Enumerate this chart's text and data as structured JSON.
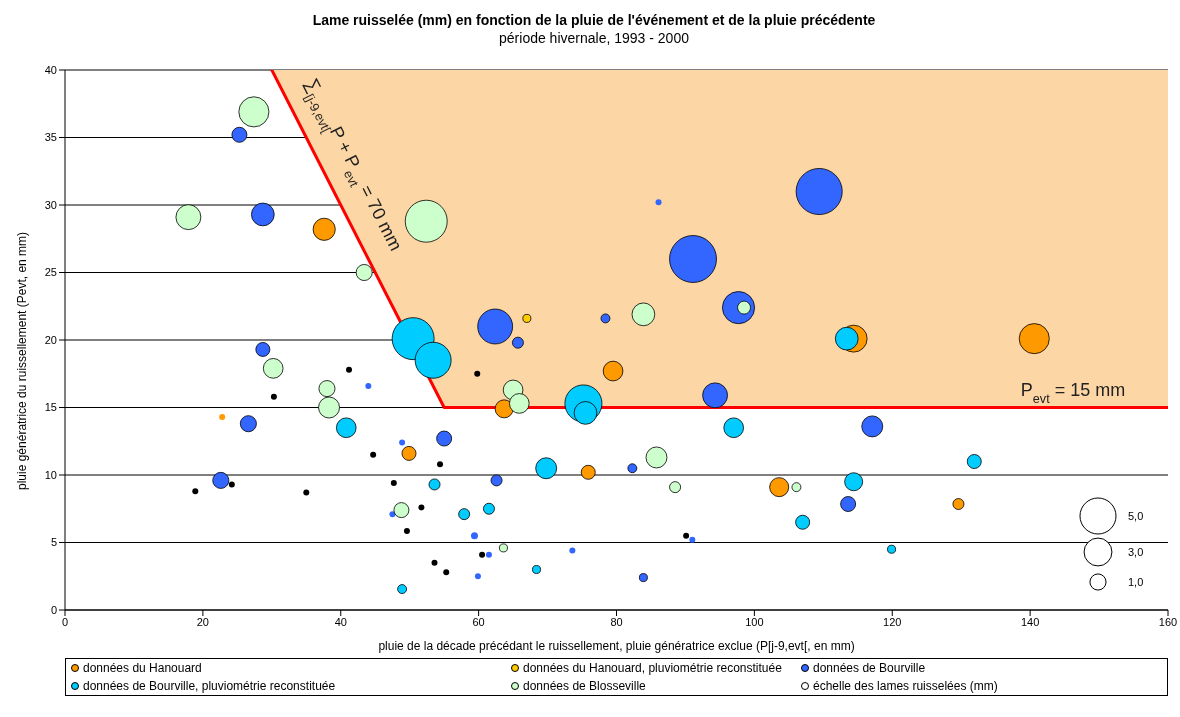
{
  "chart_data": {
    "type": "bubble",
    "title": "Lame ruisselée (mm) en fonction de la pluie de l'événement et de la pluie précédente",
    "subtitle": "période hivernale, 1993 - 2000",
    "xlabel": "pluie de la décade précédant le ruissellement, pluie génératrice exclue (P[j-9,evt[, en mm)",
    "ylabel": "pluie génératrice du ruissellement (Pevt, en mm)",
    "xlim": [
      0,
      160
    ],
    "xticks": [
      0,
      20,
      40,
      60,
      80,
      100,
      120,
      140,
      160
    ],
    "ylim": [
      0,
      40
    ],
    "yticks": [
      0,
      5,
      10,
      15,
      20,
      25,
      30,
      35,
      40
    ],
    "grid": "y",
    "legend": "bottom",
    "size_legend": [
      {
        "value": 5,
        "label": "5,0"
      },
      {
        "value": 3,
        "label": "3,0"
      },
      {
        "value": 1,
        "label": "1,0"
      }
    ],
    "annotations": [
      "∑$_{[j-9,evt[}$P + P$_{evt}$ = 70 mm",
      "P$_{evt}$ = 15 mm",
      "échelle des lames ruisselées (mm)"
    ],
    "series": [
      {
        "type": "line",
        "color": "#ff0000",
        "x": [
          30,
          55,
          160
        ],
        "values": [
          40,
          15,
          15
        ],
        "lower": [
          40,
          15,
          15
        ],
        "upper": [
          40,
          40,
          40
        ]
      },
      {
        "name": "données du Hanouard",
        "color": "#ff9900",
        "x": [
          37.6,
          114.4,
          140.6,
          49.9,
          22.8,
          79.5,
          63.7,
          75.9,
          103.6,
          129.6
        ],
        "values": [
          28.2,
          20.1,
          20.1,
          11.6,
          14.3,
          17.7,
          14.9,
          10.2,
          9.1,
          7.85
        ],
        "sizes": [
          1.9,
          2.8,
          3.5,
          0.76,
          0.14,
          1.5,
          1.25,
          0.76,
          1.4,
          0.47
        ]
      },
      {
        "name": "données du Hanouard, pluviométrie reconstituée",
        "color": "#ffcc00",
        "x": [
          67.0
        ],
        "values": [
          21.6
        ],
        "sizes": [
          0.25
        ]
      },
      {
        "name": "données de Bourville",
        "color": "#3366ff",
        "x": [
          25.3,
          28.7,
          28.7,
          86.1,
          109.4,
          91.1,
          97.7,
          78.4,
          62.4,
          65.7,
          117.1,
          26.6,
          55.0,
          22.6,
          59.4,
          94.3,
          82.3,
          62.6,
          113.6,
          83.9
        ],
        "values": [
          35.2,
          29.3,
          19.3,
          30.2,
          31.0,
          26.0,
          22.4,
          21.6,
          21.0,
          19.8,
          13.6,
          13.8,
          12.7,
          9.6,
          5.5,
          15.9,
          10.5,
          9.6,
          7.85,
          2.4
        ],
        "sizes": [
          0.87,
          2.0,
          0.76,
          0.14,
          8.2,
          8.5,
          4.0,
          0.31,
          4.7,
          0.47,
          1.7,
          1.0,
          0.87,
          1.0,
          0.19,
          2.4,
          0.31,
          0.47,
          0.87,
          0.25
        ]
      },
      {
        "type": "scatter",
        "color": "#3366ff",
        "x": [
          44.0,
          48.9,
          47.5,
          73.6,
          91.0,
          61.5,
          59.9
        ],
        "values": [
          16.6,
          12.4,
          7.1,
          4.4,
          5.2,
          4.1,
          2.5
        ]
      },
      {
        "name": "données de Bourville, pluviométrie reconstituée",
        "color": "#00ccff",
        "x": [
          50.5,
          53.4,
          113.4,
          131.9,
          119.9,
          40.8,
          53.6,
          57.9,
          48.9,
          75.2,
          75.5,
          97.0,
          69.8,
          114.4,
          107.0,
          61.5,
          68.4
        ],
        "values": [
          20.1,
          18.5,
          20.1,
          11.0,
          4.5,
          13.5,
          9.3,
          7.1,
          1.55,
          15.3,
          14.6,
          13.5,
          10.5,
          9.5,
          6.5,
          7.5,
          3.0
        ],
        "sizes": [
          6.8,
          5.0,
          2.0,
          0.76,
          0.25,
          1.5,
          0.47,
          0.47,
          0.31,
          5.3,
          2.0,
          1.5,
          1.7,
          1.25,
          0.76,
          0.47,
          0.25
        ]
      },
      {
        "name": "données de Blosseville",
        "color": "#ccffcc",
        "x": [
          27.4,
          17.9,
          43.4,
          52.4,
          83.9,
          98.5,
          30.2,
          38.0,
          38.3,
          48.8,
          65.0,
          65.9,
          85.8,
          88.5,
          106.1,
          63.6
        ],
        "values": [
          36.9,
          29.1,
          25.0,
          28.8,
          21.9,
          22.4,
          17.9,
          16.4,
          15.0,
          7.4,
          16.3,
          15.3,
          11.3,
          9.1,
          9.1,
          4.6
        ],
        "sizes": [
          3.5,
          2.4,
          1.0,
          6.8,
          2.0,
          0.65,
          1.5,
          1.0,
          1.7,
          0.87,
          1.5,
          1.5,
          1.7,
          0.47,
          0.31,
          0.25
        ]
      },
      {
        "type": "scatter",
        "color": "#000000",
        "x": [
          30.3,
          41.2,
          44.7,
          54.4,
          24.2,
          18.9,
          35.0,
          47.7,
          51.7,
          49.6,
          53.6,
          55.3,
          59.8,
          90.1,
          60.5
        ],
        "values": [
          15.8,
          17.8,
          11.5,
          10.8,
          9.3,
          8.8,
          8.7,
          9.4,
          7.6,
          5.85,
          3.5,
          2.8,
          17.5,
          5.5,
          4.1
        ]
      }
    ]
  }
}
